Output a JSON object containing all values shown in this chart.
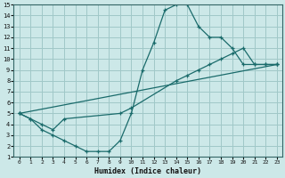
{
  "xlabel": "Humidex (Indice chaleur)",
  "bg_color": "#cce8e8",
  "grid_color": "#a0c8c8",
  "line_color": "#1a6b6b",
  "xlim": [
    -0.5,
    23.5
  ],
  "ylim": [
    1,
    15
  ],
  "xticks": [
    0,
    1,
    2,
    3,
    4,
    5,
    6,
    7,
    8,
    9,
    10,
    11,
    12,
    13,
    14,
    15,
    16,
    17,
    18,
    19,
    20,
    21,
    22,
    23
  ],
  "yticks": [
    1,
    2,
    3,
    4,
    5,
    6,
    7,
    8,
    9,
    10,
    11,
    12,
    13,
    14,
    15
  ],
  "series": [
    {
      "x": [
        0,
        1,
        2,
        3,
        4,
        5,
        6,
        7,
        8,
        9,
        10,
        11,
        12,
        13,
        14,
        15,
        16,
        17,
        18,
        19,
        20,
        21,
        22,
        23
      ],
      "y": [
        5,
        4.5,
        3.5,
        3,
        2.5,
        2,
        1.5,
        1.5,
        1.5,
        2.5,
        5,
        9,
        11.5,
        14.5,
        15,
        15,
        13,
        12,
        12,
        11,
        9.5,
        9.5,
        9.5,
        9.5
      ]
    },
    {
      "x": [
        0,
        23
      ],
      "y": [
        5,
        9.5
      ]
    },
    {
      "x": [
        0,
        1,
        2,
        3,
        4,
        9,
        10,
        14,
        15,
        16,
        17,
        18,
        19,
        20,
        21,
        22,
        23
      ],
      "y": [
        5,
        4.5,
        4,
        3.5,
        4.5,
        5,
        5.5,
        8,
        8.5,
        9,
        9.5,
        10,
        10.5,
        11,
        9.5,
        9.5,
        9.5
      ]
    }
  ]
}
